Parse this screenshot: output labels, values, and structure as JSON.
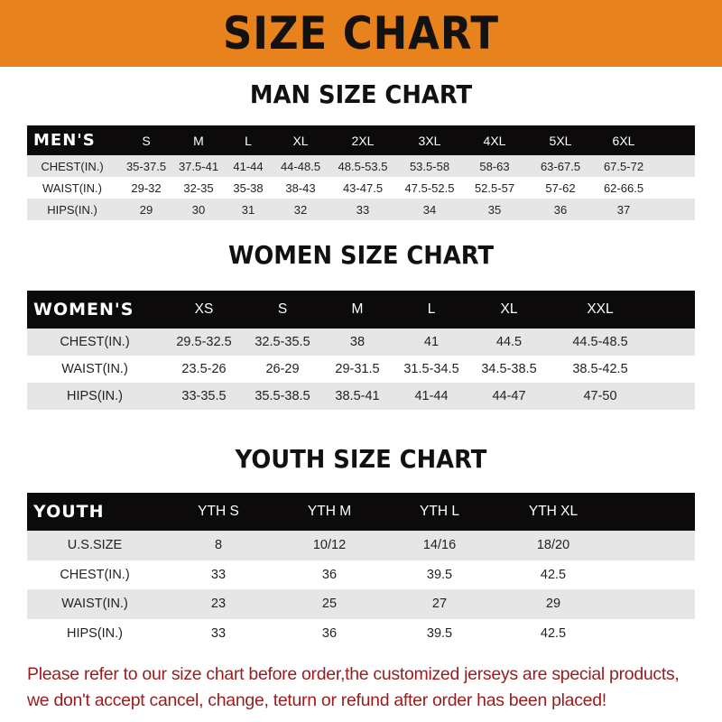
{
  "banner_title": "SIZE CHART",
  "colors": {
    "banner": "#e8821c",
    "header_row": "#0c0a0a",
    "shaded_row": "#e6e6e6",
    "note_text": "#9a1c1c"
  },
  "men": {
    "title": "MAN SIZE CHART",
    "headers": [
      "MEN'S",
      "S",
      "M",
      "L",
      "XL",
      "2XL",
      "3XL",
      "4XL",
      "5XL",
      "6XL"
    ],
    "rows": [
      [
        "CHEST(IN.)",
        "35-37.5",
        "37.5-41",
        "41-44",
        "44-48.5",
        "48.5-53.5",
        "53.5-58",
        "58-63",
        "63-67.5",
        "67.5-72"
      ],
      [
        "WAIST(IN.)",
        "29-32",
        "32-35",
        "35-38",
        "38-43",
        "43-47.5",
        "47.5-52.5",
        "52.5-57",
        "57-62",
        "62-66.5"
      ],
      [
        "HIPS(IN.)",
        "29",
        "30",
        "31",
        "32",
        "33",
        "34",
        "35",
        "36",
        "37"
      ]
    ]
  },
  "women": {
    "title": "WOMEN SIZE CHART",
    "headers": [
      "WOMEN'S",
      "XS",
      "S",
      "M",
      "L",
      "XL",
      "XXL"
    ],
    "rows": [
      [
        "CHEST(IN.)",
        "29.5-32.5",
        "32.5-35.5",
        "38",
        "41",
        "44.5",
        "44.5-48.5"
      ],
      [
        "WAIST(IN.)",
        "23.5-26",
        "26-29",
        "29-31.5",
        "31.5-34.5",
        "34.5-38.5",
        "38.5-42.5"
      ],
      [
        "HIPS(IN.)",
        "33-35.5",
        "35.5-38.5",
        "38.5-41",
        "41-44",
        "44-47",
        "47-50"
      ]
    ]
  },
  "youth": {
    "title": "YOUTH SIZE CHART",
    "headers": [
      "YOUTH",
      "YTH S",
      "YTH M",
      "YTH L",
      "YTH XL"
    ],
    "rows": [
      [
        "U.S.SIZE",
        "8",
        "10/12",
        "14/16",
        "18/20"
      ],
      [
        "CHEST(IN.)",
        "33",
        "36",
        "39.5",
        "42.5"
      ],
      [
        "WAIST(IN.)",
        "23",
        "25",
        "27",
        "29"
      ],
      [
        "HIPS(IN.)",
        "33",
        "36",
        "39.5",
        "42.5"
      ]
    ]
  },
  "note": {
    "line1": "Please refer to our size chart before order,the customized jerseys are special products,",
    "line2": "we don't accept cancel, change, teturn or refund after order has been placed!"
  }
}
